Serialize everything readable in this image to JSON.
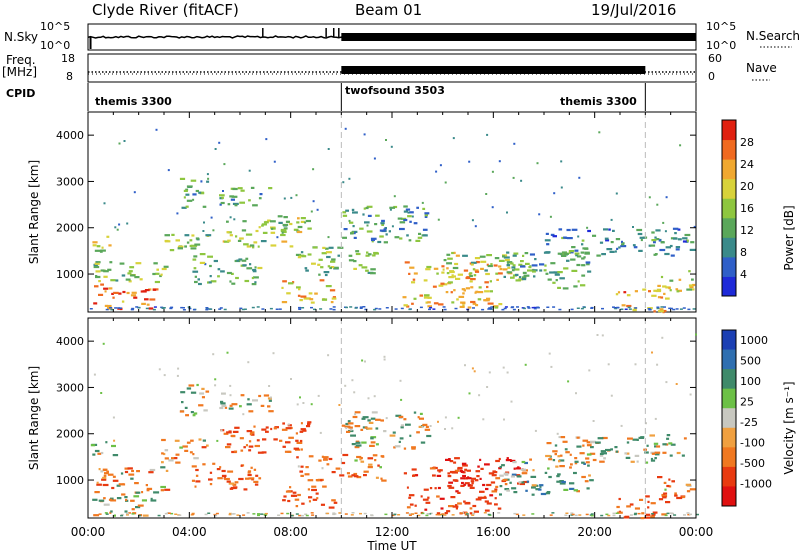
{
  "header": {
    "station": "Clyde River (fitACF)",
    "beam": "Beam 01",
    "date": "19/Jul/2016"
  },
  "chart_data": {
    "type": "heatmap",
    "time_axis": {
      "xlabel": "Time UT",
      "range_hours": [
        0,
        24
      ],
      "ticks": [
        "00:00",
        "04:00",
        "08:00",
        "12:00",
        "16:00",
        "20:00",
        "00:00"
      ],
      "tick_hours": [
        0,
        4,
        8,
        12,
        16,
        20,
        24
      ]
    },
    "nsky_panel": {
      "left_label": "N.Sky",
      "right_label": "N.Search",
      "left_ticks": [
        "10^5",
        "10^0"
      ],
      "right_ticks": [
        "10^5",
        "10^0"
      ],
      "dense_interval_hours": [
        10,
        24
      ]
    },
    "freq_panel": {
      "left_label_top": "Freq.",
      "left_label_bottom": "[MHz]",
      "right_label": "Nave",
      "left_ticks": [
        "18",
        "8"
      ],
      "right_ticks": [
        "60",
        "0"
      ],
      "freq_mhz": 10.4,
      "dense_interval_hours": [
        10,
        22
      ]
    },
    "cpid_panel": {
      "label": "CPID",
      "segments": [
        {
          "name": "themis 3300",
          "start_h": 0,
          "end_h": 10
        },
        {
          "name": "twofsound 3503",
          "start_h": 10,
          "end_h": 22
        },
        {
          "name": "themis 3300",
          "start_h": 22,
          "end_h": 24
        }
      ]
    },
    "power_panel": {
      "ylabel": "Slant Range [km]",
      "ylim": [
        180,
        4500
      ],
      "yticks": [
        1000,
        2000,
        3000,
        4000
      ],
      "colorbar_label": "Power [dB]",
      "colorbar_ticks": [
        "4",
        "8",
        "12",
        "16",
        "20",
        "24",
        "28"
      ],
      "colorbar_range": [
        0,
        32
      ],
      "colorbar_colors": [
        "#1e2ad8",
        "#2f5fc8",
        "#3a8a8a",
        "#5aa75a",
        "#8ec63f",
        "#d8d23a",
        "#f0a830",
        "#f06a20",
        "#e02010"
      ]
    },
    "velocity_panel": {
      "ylabel": "Slant Range [km]",
      "ylim": [
        180,
        4500
      ],
      "yticks": [
        1000,
        2000,
        3000,
        4000
      ],
      "colorbar_label": "Velocity [m s⁻¹]",
      "colorbar_ticks": [
        "1000",
        "500",
        "100",
        "25",
        "-25",
        "-100",
        "-500",
        "-1000"
      ],
      "colorbar_colors": [
        "#1b3fb3",
        "#2f6fb0",
        "#3f8a6a",
        "#6cc046",
        "#c8c8c0",
        "#f0a040",
        "#f07820",
        "#e83a10",
        "#e01010"
      ]
    },
    "echo_regions": [
      {
        "t0": 0.1,
        "t1": 2.6,
        "r0": 250,
        "r1": 800,
        "power": 27,
        "velocity": -25
      },
      {
        "t0": 0.1,
        "t1": 1.0,
        "r0": 1500,
        "r1": 1900,
        "power": 17,
        "velocity": 0
      },
      {
        "t0": 0.2,
        "t1": 3.2,
        "r0": 800,
        "r1": 1300,
        "power": 14,
        "velocity": -150
      },
      {
        "t0": 2.8,
        "t1": 4.7,
        "r0": 1400,
        "r1": 1900,
        "power": 15,
        "velocity": -60
      },
      {
        "t0": 3.6,
        "t1": 4.7,
        "r0": 2400,
        "r1": 3100,
        "power": 12,
        "velocity": 0
      },
      {
        "t0": 4.0,
        "t1": 6.8,
        "r0": 800,
        "r1": 1400,
        "power": 13,
        "velocity": -300
      },
      {
        "t0": 5.2,
        "t1": 8.4,
        "r0": 1600,
        "r1": 2200,
        "power": 16,
        "velocity": -400
      },
      {
        "t0": 5.0,
        "t1": 7.2,
        "r0": 2500,
        "r1": 2900,
        "power": 12,
        "velocity": 0
      },
      {
        "t0": 7.4,
        "t1": 8.7,
        "r0": 1900,
        "r1": 2300,
        "power": 17,
        "velocity": -450
      },
      {
        "t0": 7.6,
        "t1": 9.7,
        "r0": 400,
        "r1": 900,
        "power": 22,
        "velocity": -400
      },
      {
        "t0": 8.2,
        "t1": 11.6,
        "r0": 1000,
        "r1": 1600,
        "power": 14,
        "velocity": -200
      },
      {
        "t0": 10.0,
        "t1": 13.4,
        "r0": 1700,
        "r1": 2500,
        "power": 11,
        "velocity": 0
      },
      {
        "t0": 12.4,
        "t1": 16.2,
        "r0": 300,
        "r1": 1300,
        "power": 22,
        "velocity": -500
      },
      {
        "t0": 14.0,
        "t1": 17.2,
        "r0": 900,
        "r1": 1500,
        "power": 16,
        "velocity": -700
      },
      {
        "t0": 16.2,
        "t1": 19.8,
        "r0": 700,
        "r1": 1500,
        "power": 12,
        "velocity": 80
      },
      {
        "t0": 18.0,
        "t1": 23.8,
        "r0": 1400,
        "r1": 2000,
        "power": 9,
        "velocity": 0
      },
      {
        "t0": 20.8,
        "t1": 22.8,
        "r0": 200,
        "r1": 700,
        "power": 24,
        "velocity": -300
      },
      {
        "t0": 22.4,
        "t1": 23.9,
        "r0": 600,
        "r1": 1100,
        "power": 18,
        "velocity": -200
      }
    ]
  }
}
